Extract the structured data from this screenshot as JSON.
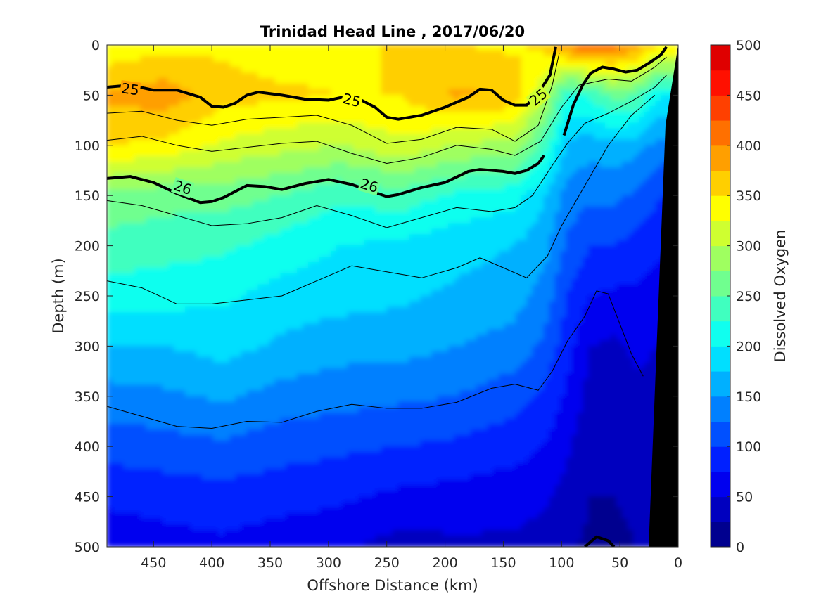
{
  "chart_data": {
    "type": "heatmap",
    "title": "Trinidad Head Line , 2017/06/20",
    "xlabel": "Offshore Distance (km)",
    "ylabel": "Depth (m)",
    "xlim": [
      490,
      0
    ],
    "ylim": [
      0,
      500
    ],
    "x_ticks": [
      450,
      400,
      350,
      300,
      250,
      200,
      150,
      100,
      50,
      0
    ],
    "y_ticks": [
      0,
      50,
      100,
      150,
      200,
      250,
      300,
      350,
      400,
      450,
      500
    ],
    "colorbar": {
      "label": "Dissolved Oxygen",
      "range": [
        0,
        500
      ],
      "ticks": [
        0,
        50,
        100,
        150,
        200,
        250,
        300,
        350,
        400,
        450,
        500
      ],
      "levels": [
        0,
        25,
        50,
        75,
        100,
        125,
        150,
        175,
        200,
        225,
        250,
        275,
        300,
        325,
        350,
        375,
        400,
        425,
        450,
        475,
        500
      ],
      "colors": [
        "#00008f",
        "#0000bf",
        "#0000ef",
        "#0020ff",
        "#0050ff",
        "#0080ff",
        "#00b0ff",
        "#00dfff",
        "#10ffef",
        "#40ffbf",
        "#70ff8f",
        "#9fff60",
        "#cfff30",
        "#ffff00",
        "#ffcf00",
        "#ff9f00",
        "#ff7000",
        "#ff4000",
        "#ff1000",
        "#df0000",
        "#af0000"
      ]
    },
    "field": {
      "x_grid": [
        490,
        440,
        390,
        340,
        290,
        240,
        190,
        140,
        115,
        95,
        75,
        55,
        35,
        15
      ],
      "y_grid": [
        0,
        50,
        100,
        150,
        200,
        250,
        300,
        350,
        400,
        450,
        500
      ],
      "values": [
        [
          330,
          340,
          345,
          335,
          340,
          355,
          350,
          345,
          360,
          400,
          420,
          410,
          390,
          350
        ],
        [
          380,
          390,
          360,
          355,
          350,
          350,
          380,
          370,
          300,
          220,
          230,
          260,
          250,
          200
        ],
        [
          350,
          345,
          320,
          310,
          300,
          320,
          300,
          290,
          240,
          170,
          160,
          170,
          160,
          140
        ],
        [
          270,
          260,
          260,
          250,
          230,
          240,
          220,
          210,
          180,
          140,
          130,
          130,
          120,
          100
        ],
        [
          240,
          235,
          230,
          215,
          200,
          195,
          185,
          175,
          160,
          120,
          100,
          100,
          90,
          80
        ],
        [
          215,
          210,
          205,
          190,
          185,
          180,
          170,
          160,
          140,
          100,
          75,
          70,
          70,
          60
        ],
        [
          175,
          175,
          185,
          170,
          160,
          160,
          150,
          140,
          120,
          85,
          50,
          45,
          55,
          50
        ],
        [
          140,
          145,
          155,
          140,
          135,
          130,
          125,
          110,
          95,
          70,
          40,
          35,
          45,
          40
        ],
        [
          110,
          115,
          120,
          110,
          105,
          100,
          95,
          85,
          75,
          55,
          30,
          30,
          35,
          35
        ],
        [
          80,
          85,
          90,
          85,
          80,
          70,
          65,
          60,
          55,
          40,
          25,
          25,
          30,
          30
        ],
        [
          60,
          65,
          70,
          60,
          55,
          40,
          45,
          45,
          40,
          30,
          20,
          20,
          25,
          25
        ]
      ]
    },
    "density_contours": [
      {
        "label": "25",
        "bold": true,
        "points": [
          [
            490,
            42
          ],
          [
            470,
            40
          ],
          [
            450,
            45
          ],
          [
            430,
            45
          ],
          [
            410,
            52
          ],
          [
            400,
            61
          ],
          [
            390,
            62
          ],
          [
            380,
            58
          ],
          [
            370,
            50
          ],
          [
            360,
            47
          ],
          [
            340,
            50
          ],
          [
            320,
            54
          ],
          [
            300,
            55
          ],
          [
            280,
            50
          ],
          [
            260,
            62
          ],
          [
            250,
            72
          ],
          [
            240,
            74
          ],
          [
            220,
            70
          ],
          [
            200,
            62
          ],
          [
            180,
            52
          ],
          [
            170,
            44
          ],
          [
            160,
            45
          ],
          [
            150,
            55
          ],
          [
            140,
            60
          ],
          [
            130,
            60
          ],
          [
            120,
            48
          ],
          [
            110,
            30
          ],
          [
            105,
            2
          ]
        ]
      },
      {
        "label": "",
        "bold": true,
        "points": [
          [
            98,
            90
          ],
          [
            90,
            60
          ],
          [
            82,
            40
          ],
          [
            75,
            28
          ],
          [
            65,
            22
          ],
          [
            55,
            24
          ],
          [
            45,
            27
          ],
          [
            35,
            25
          ],
          [
            25,
            18
          ],
          [
            15,
            10
          ],
          [
            10,
            2
          ]
        ]
      },
      {
        "label": "26",
        "bold": true,
        "points": [
          [
            490,
            133
          ],
          [
            470,
            131
          ],
          [
            450,
            137
          ],
          [
            430,
            148
          ],
          [
            410,
            157
          ],
          [
            400,
            156
          ],
          [
            390,
            152
          ],
          [
            380,
            146
          ],
          [
            370,
            140
          ],
          [
            355,
            141
          ],
          [
            340,
            144
          ],
          [
            320,
            138
          ],
          [
            300,
            134
          ],
          [
            280,
            139
          ],
          [
            260,
            147
          ],
          [
            250,
            151
          ],
          [
            240,
            149
          ],
          [
            220,
            142
          ],
          [
            200,
            137
          ],
          [
            180,
            126
          ],
          [
            170,
            124
          ],
          [
            150,
            126
          ],
          [
            140,
            128
          ],
          [
            130,
            125
          ],
          [
            120,
            118
          ],
          [
            115,
            110
          ]
        ]
      },
      {
        "label": "",
        "bold": false,
        "points": [
          [
            490,
            68
          ],
          [
            460,
            66
          ],
          [
            430,
            75
          ],
          [
            400,
            80
          ],
          [
            370,
            74
          ],
          [
            340,
            72
          ],
          [
            310,
            70
          ],
          [
            280,
            80
          ],
          [
            250,
            98
          ],
          [
            220,
            94
          ],
          [
            190,
            82
          ],
          [
            160,
            84
          ],
          [
            140,
            96
          ],
          [
            120,
            80
          ],
          [
            108,
            40
          ],
          [
            102,
            8
          ]
        ]
      },
      {
        "label": "",
        "bold": false,
        "points": [
          [
            490,
            95
          ],
          [
            460,
            91
          ],
          [
            430,
            100
          ],
          [
            400,
            106
          ],
          [
            370,
            102
          ],
          [
            340,
            98
          ],
          [
            310,
            96
          ],
          [
            280,
            108
          ],
          [
            250,
            118
          ],
          [
            220,
            112
          ],
          [
            190,
            100
          ],
          [
            160,
            104
          ],
          [
            140,
            110
          ],
          [
            118,
            96
          ],
          [
            100,
            62
          ],
          [
            85,
            40
          ],
          [
            60,
            34
          ],
          [
            40,
            36
          ],
          [
            20,
            22
          ],
          [
            10,
            12
          ]
        ]
      },
      {
        "label": "",
        "bold": false,
        "points": [
          [
            490,
            155
          ],
          [
            460,
            160
          ],
          [
            430,
            170
          ],
          [
            400,
            180
          ],
          [
            370,
            178
          ],
          [
            340,
            172
          ],
          [
            310,
            160
          ],
          [
            280,
            170
          ],
          [
            250,
            182
          ],
          [
            220,
            172
          ],
          [
            190,
            162
          ],
          [
            160,
            166
          ],
          [
            140,
            162
          ],
          [
            125,
            150
          ],
          [
            108,
            120
          ],
          [
            95,
            98
          ],
          [
            80,
            78
          ],
          [
            60,
            68
          ],
          [
            40,
            56
          ],
          [
            20,
            42
          ],
          [
            10,
            30
          ]
        ]
      },
      {
        "label": "",
        "bold": false,
        "points": [
          [
            490,
            235
          ],
          [
            460,
            242
          ],
          [
            430,
            258
          ],
          [
            400,
            258
          ],
          [
            370,
            254
          ],
          [
            340,
            250
          ],
          [
            310,
            235
          ],
          [
            280,
            220
          ],
          [
            250,
            226
          ],
          [
            220,
            232
          ],
          [
            190,
            222
          ],
          [
            170,
            212
          ],
          [
            150,
            222
          ],
          [
            130,
            232
          ],
          [
            112,
            210
          ],
          [
            100,
            180
          ],
          [
            80,
            140
          ],
          [
            60,
            100
          ],
          [
            40,
            70
          ],
          [
            20,
            50
          ]
        ]
      },
      {
        "label": "",
        "bold": false,
        "points": [
          [
            490,
            360
          ],
          [
            460,
            370
          ],
          [
            430,
            380
          ],
          [
            400,
            382
          ],
          [
            370,
            375
          ],
          [
            340,
            376
          ],
          [
            310,
            365
          ],
          [
            280,
            358
          ],
          [
            250,
            362
          ],
          [
            220,
            362
          ],
          [
            190,
            356
          ],
          [
            160,
            342
          ],
          [
            140,
            338
          ],
          [
            120,
            344
          ],
          [
            108,
            325
          ],
          [
            95,
            295
          ],
          [
            80,
            270
          ],
          [
            70,
            245
          ],
          [
            60,
            248
          ],
          [
            50,
            278
          ],
          [
            40,
            308
          ],
          [
            30,
            330
          ]
        ]
      }
    ],
    "bottom_contour": {
      "label": "",
      "bold": true,
      "points": [
        [
          80,
          500
        ],
        [
          70,
          490
        ],
        [
          60,
          494
        ],
        [
          55,
          500
        ]
      ]
    }
  }
}
